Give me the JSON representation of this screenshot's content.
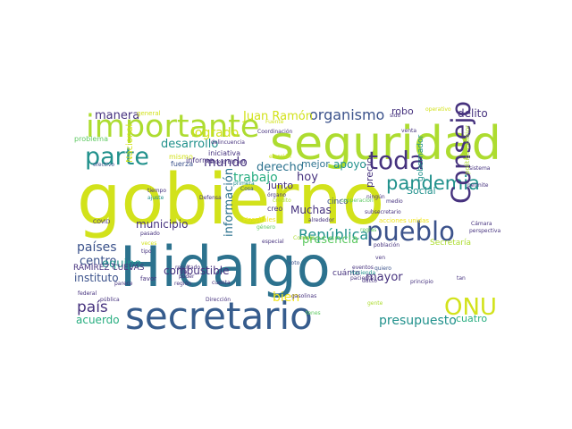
{
  "wordcloud": {
    "palette": {
      "dark_purple": "#46327e",
      "indigo": "#3b528b",
      "slate_blue": "#365c8d",
      "steel_blue": "#2c728e",
      "teal": "#21918c",
      "sea_green": "#28ae80",
      "green": "#5ec962",
      "lime": "#addc30",
      "yellow": "#d2e21b",
      "bright_yellow": "#f1e51d"
    },
    "words": [
      {
        "text": "gobierno",
        "color": "#d2e21b"
      },
      {
        "text": "Hidalgo",
        "color": "#2c728e"
      },
      {
        "text": "seguridad",
        "color": "#addc30"
      },
      {
        "text": "importante",
        "color": "#addc30"
      },
      {
        "text": "secretario",
        "color": "#365c8d"
      },
      {
        "text": "toda",
        "color": "#46327e"
      },
      {
        "text": "pueblo",
        "color": "#3b528b"
      },
      {
        "text": "parte",
        "color": "#21918c"
      },
      {
        "text": "pandemia",
        "color": "#21918c"
      },
      {
        "text": "Consejo",
        "color": "#46327e"
      },
      {
        "text": "ONU",
        "color": "#d2e21b"
      },
      {
        "text": "organismo",
        "color": "#3b528b"
      },
      {
        "text": "República",
        "color": "#21918c"
      },
      {
        "text": "países",
        "color": "#3b528b"
      },
      {
        "text": "país",
        "color": "#46327e"
      },
      {
        "text": "presupuesto",
        "color": "#21918c"
      },
      {
        "text": "desarrollo",
        "color": "#21918c"
      },
      {
        "text": "logrado",
        "color": "#d2e21b"
      },
      {
        "text": "mundo",
        "color": "#46327e"
      },
      {
        "text": "trabajo",
        "color": "#28ae80"
      },
      {
        "text": "manera",
        "color": "#46327e"
      },
      {
        "text": "hoy",
        "color": "#46327e"
      },
      {
        "text": "Juan Ramón",
        "color": "#d2e21b"
      },
      {
        "text": "robo",
        "color": "#46327e"
      },
      {
        "text": "delito",
        "color": "#46327e"
      },
      {
        "text": "información",
        "color": "#2c728e"
      },
      {
        "text": "derecho",
        "color": "#2c728e"
      },
      {
        "text": "mejor",
        "color": "#2c728e"
      },
      {
        "text": "apoyo",
        "color": "#21918c"
      },
      {
        "text": "Muchas",
        "color": "#46327e"
      },
      {
        "text": "municipio",
        "color": "#46327e"
      },
      {
        "text": "presencia",
        "color": "#5ec962"
      },
      {
        "text": "centro",
        "color": "#3b528b"
      },
      {
        "text": "equipo",
        "color": "#21918c"
      },
      {
        "text": "instituto",
        "color": "#3b528b"
      },
      {
        "text": "mayor",
        "color": "#46327e"
      },
      {
        "text": "acuerdo",
        "color": "#28ae80"
      },
      {
        "text": "combustible",
        "color": "#46327e"
      },
      {
        "text": "bien",
        "color": "#f1e51d"
      },
      {
        "text": "cuatro",
        "color": "#28ae80"
      },
      {
        "text": "Social",
        "color": "#21918c"
      },
      {
        "text": "precio",
        "color": "#46327e"
      },
      {
        "text": "junto",
        "color": "#46327e"
      },
      {
        "text": "RAMÍREZ CUEVAS",
        "color": "#46327e"
      },
      {
        "text": "Nacional",
        "color": "#d2e21b"
      },
      {
        "text": "gobernador",
        "color": "#21918c"
      },
      {
        "text": "creo",
        "color": "#46327e"
      },
      {
        "text": "cinco",
        "color": "#3b528b"
      },
      {
        "text": "Secretaría",
        "color": "#addc30"
      },
      {
        "text": "cuánto",
        "color": "#46327e"
      },
      {
        "text": "iniciativa",
        "color": "#46327e"
      },
      {
        "text": "mismo",
        "color": "#d2e21b"
      },
      {
        "text": "fuerza",
        "color": "#3b528b"
      },
      {
        "text": "informe",
        "color": "#46327e"
      },
      {
        "text": "general",
        "color": "#d2e21b"
      },
      {
        "text": "problema",
        "color": "#5ec962"
      },
      {
        "text": "efectivo",
        "color": "#3b528b"
      },
      {
        "text": "Coordinación",
        "color": "#46327e"
      },
      {
        "text": "Fuente",
        "color": "#d2e21b"
      },
      {
        "text": "delincuencia",
        "color": "#46327e"
      },
      {
        "text": "Marcelo Ebrard",
        "color": "#46327e"
      },
      {
        "text": "elección",
        "color": "#d2e21b"
      },
      {
        "text": "sido",
        "color": "#46327e"
      },
      {
        "text": "operativo",
        "color": "#d2e21b"
      },
      {
        "text": "venta",
        "color": "#46327e"
      },
      {
        "text": "política exterior",
        "color": "#addc30"
      },
      {
        "text": "sistema",
        "color": "#46327e"
      },
      {
        "text": "permite",
        "color": "#46327e"
      },
      {
        "text": "medio",
        "color": "#46327e"
      },
      {
        "text": "ningún",
        "color": "#46327e"
      },
      {
        "text": "subsecretario",
        "color": "#46327e"
      },
      {
        "text": "primera",
        "color": "#21918c"
      },
      {
        "text": "tiempo",
        "color": "#46327e"
      },
      {
        "text": "ajuste",
        "color": "#21918c"
      },
      {
        "text": "Defensa",
        "color": "#46327e"
      },
      {
        "text": "Cosa",
        "color": "#3b528b"
      },
      {
        "text": "órgano",
        "color": "#46327e"
      },
      {
        "text": "crédito",
        "color": "#addc30"
      },
      {
        "text": "cooperación",
        "color": "#5ec962"
      },
      {
        "text": "COVID",
        "color": "#46327e"
      },
      {
        "text": "pasado",
        "color": "#46327e"
      },
      {
        "text": "Hospitales",
        "color": "#f1e51d"
      },
      {
        "text": "alrededor",
        "color": "#46327e"
      },
      {
        "text": "acciones unidas",
        "color": "#f1e51d"
      },
      {
        "text": "veces",
        "color": "#d2e21b"
      },
      {
        "text": "género",
        "color": "#5ec962"
      },
      {
        "text": "especial",
        "color": "#46327e"
      },
      {
        "text": "población",
        "color": "#46327e"
      },
      {
        "text": "Cámara",
        "color": "#46327e"
      },
      {
        "text": "perspectiva",
        "color": "#46327e"
      },
      {
        "text": "resultado",
        "color": "#46327e"
      },
      {
        "text": "Consejo",
        "color": "#addc30"
      },
      {
        "text": "tipo",
        "color": "#46327e"
      },
      {
        "text": "voto",
        "color": "#3b528b"
      },
      {
        "text": "eventos",
        "color": "#46327e"
      },
      {
        "text": "quiero",
        "color": "#3b528b"
      },
      {
        "text": "Hacienda",
        "color": "#21918c"
      },
      {
        "text": "paciente",
        "color": "#46327e"
      },
      {
        "text": "favor",
        "color": "#46327e"
      },
      {
        "text": "poder",
        "color": "#46327e"
      },
      {
        "text": "región",
        "color": "#46327e"
      },
      {
        "text": "ducto",
        "color": "#46327e"
      },
      {
        "text": "principio",
        "color": "#46327e"
      },
      {
        "text": "tan",
        "color": "#46327e"
      },
      {
        "text": "federal",
        "color": "#46327e"
      },
      {
        "text": "pública",
        "color": "#46327e"
      },
      {
        "text": "Dirección",
        "color": "#46327e"
      },
      {
        "text": "gasolinas",
        "color": "#46327e"
      },
      {
        "text": "gente",
        "color": "#addc30"
      },
      {
        "text": "tenes",
        "color": "#5ec962"
      },
      {
        "text": "dar",
        "color": "#46327e"
      },
      {
        "text": "cuenta",
        "color": "#46327e"
      },
      {
        "text": "parece",
        "color": "#46327e"
      },
      {
        "text": "ven",
        "color": "#46327e"
      },
      {
        "text": "reglas",
        "color": "#5ec962"
      }
    ]
  }
}
